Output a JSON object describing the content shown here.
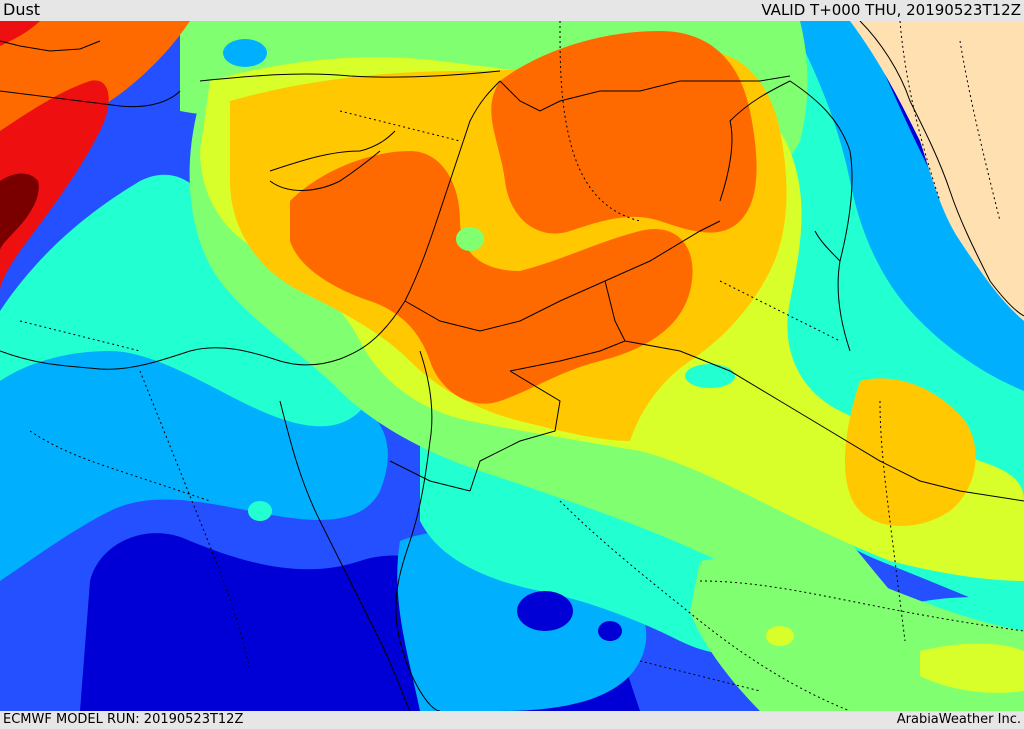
{
  "header": {
    "field_name": "Dust",
    "valid_time": "VALID T+000 THU, 20190523T12Z"
  },
  "footer": {
    "model_run": "ECMWF MODEL RUN: 20190523T12Z",
    "credit": "ArabiaWeather Inc."
  },
  "map": {
    "region": "Middle East / Eastern Mediterranean",
    "field": "dust concentration",
    "color_scale": [
      "#0000d6",
      "#2450ff",
      "#00b0ff",
      "#22ffd0",
      "#80ff70",
      "#d8ff2a",
      "#ffc800",
      "#ff6a00",
      "#ee1010",
      "#7a0000"
    ],
    "land_background": "#ffe0b0",
    "borders": "black solid (coastlines, country) and dotted (internal)"
  }
}
